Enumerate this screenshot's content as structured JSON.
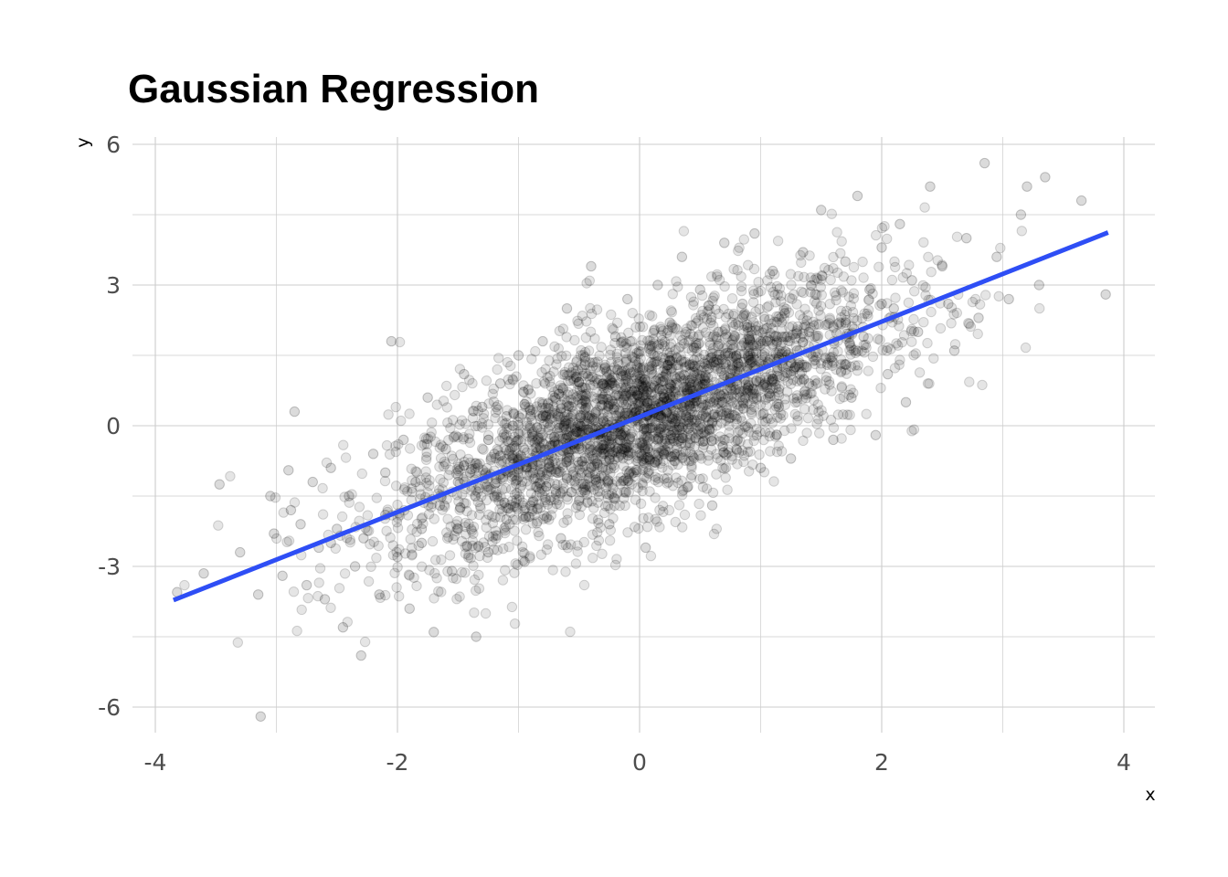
{
  "chart_data": {
    "type": "scatter",
    "title": "Gaussian Regression",
    "xlabel": "x",
    "ylabel": "y",
    "xlim": [
      -4.0,
      4.0
    ],
    "ylim": [
      -6.5,
      6.0
    ],
    "x_ticks": [
      -4,
      -2,
      0,
      2,
      4
    ],
    "x_tick_labels": [
      "-4",
      "-2",
      "0",
      "2",
      "4"
    ],
    "y_ticks": [
      -6,
      -3,
      0,
      3,
      6
    ],
    "y_tick_labels": [
      "-6",
      "-3",
      "0",
      "3",
      "6"
    ],
    "grid": true,
    "legend": "none",
    "colors": {
      "points": "#000000",
      "line": "#2e4ef5",
      "grid": "#cccccc"
    },
    "points_note_style": "semi-transparent black circles",
    "series": [
      {
        "kind": "points",
        "x": [
          -3.82,
          -3.6,
          -3.47,
          -3.3,
          -3.15,
          -3.13,
          -3.05,
          -3.02,
          -2.95,
          -2.9,
          -2.88,
          -2.85,
          -2.8,
          -2.75,
          -2.7,
          -2.65,
          -2.6,
          -2.55,
          -2.5,
          -2.45,
          -2.4,
          -2.35,
          -2.3,
          -2.28,
          -2.2,
          -2.15,
          -2.1,
          -2.05,
          -2.0,
          -1.95,
          -1.9,
          -1.85,
          -1.8,
          -1.75,
          -1.7,
          -1.65,
          -1.6,
          -1.55,
          -1.5,
          -1.45,
          -1.4,
          -1.35,
          -1.3,
          -1.25,
          -1.2,
          -1.15,
          -1.1,
          -1.05,
          -1.0,
          -0.95,
          -0.9,
          -0.85,
          -0.8,
          -0.75,
          -0.7,
          -0.65,
          -0.6,
          -0.55,
          -0.5,
          -0.45,
          -0.4,
          -0.35,
          -0.3,
          -0.25,
          -0.2,
          -0.15,
          -0.1,
          -0.05,
          0.0,
          0.05,
          0.1,
          0.15,
          0.2,
          0.25,
          0.3,
          0.35,
          0.4,
          0.45,
          0.5,
          0.55,
          0.6,
          0.65,
          0.7,
          0.75,
          0.8,
          0.85,
          0.9,
          0.95,
          1.0,
          1.05,
          1.1,
          1.15,
          1.2,
          1.25,
          1.3,
          1.35,
          1.4,
          1.45,
          1.5,
          1.55,
          1.6,
          1.65,
          1.7,
          1.75,
          1.8,
          1.85,
          1.9,
          1.95,
          2.0,
          2.05,
          2.1,
          2.15,
          2.2,
          2.25,
          2.3,
          2.4,
          2.5,
          2.6,
          2.7,
          2.8,
          2.85,
          2.95,
          3.05,
          3.15,
          3.2,
          3.3,
          3.35,
          3.65,
          3.85,
          -2.1,
          -1.8,
          -1.5,
          -1.2,
          -0.9,
          -0.6,
          -0.3,
          0.2,
          0.5,
          0.8,
          1.1,
          1.4,
          1.7,
          2.0,
          -1.0,
          -0.4,
          0.1,
          0.6,
          1.2,
          1.7,
          -2.55,
          -1.35,
          0.0,
          1.45,
          2.55,
          -1.1,
          1.0
        ],
        "y": [
          -3.55,
          -3.15,
          -1.25,
          -2.7,
          -3.6,
          -6.2,
          -1.5,
          -2.3,
          -3.2,
          -0.95,
          -1.8,
          0.3,
          -2.1,
          -3.4,
          -1.2,
          -2.6,
          -3.7,
          -0.9,
          -2.2,
          -4.3,
          -1.5,
          -3.0,
          -4.9,
          -2.4,
          -0.6,
          -3.6,
          -1.9,
          1.8,
          -2.8,
          -0.3,
          -3.9,
          -1.2,
          -2.5,
          0.6,
          -4.4,
          -1.7,
          -0.5,
          -3.1,
          -2.2,
          1.1,
          -1.0,
          -4.5,
          0.4,
          -2.7,
          -1.5,
          0.9,
          -2.0,
          -0.7,
          1.5,
          -2.9,
          0.2,
          -1.3,
          1.8,
          -0.9,
          0.6,
          -2.4,
          2.5,
          -0.4,
          -1.6,
          1.3,
          3.4,
          -0.8,
          0.9,
          -2.1,
          1.9,
          -0.2,
          2.7,
          -1.0,
          0.5,
          -2.6,
          1.7,
          3.0,
          -0.6,
          2.2,
          0.1,
          3.6,
          -1.3,
          1.4,
          2.9,
          0.3,
          -1.7,
          2.0,
          3.9,
          0.8,
          -0.5,
          2.6,
          1.2,
          4.1,
          -0.9,
          1.8,
          3.3,
          0.4,
          2.4,
          -0.7,
          1.6,
          3.7,
          0.9,
          2.8,
          4.6,
          1.3,
          -0.3,
          2.2,
          3.5,
          0.6,
          4.9,
          1.9,
          2.9,
          -0.2,
          3.8,
          1.1,
          2.5,
          4.3,
          0.5,
          3.1,
          2.0,
          5.1,
          3.4,
          1.6,
          4.0,
          2.3,
          5.6,
          3.6,
          2.7,
          4.5,
          5.1,
          3.0,
          5.3,
          4.8,
          2.8,
          -1.0,
          -2.2,
          -1.2,
          -0.6,
          -1.7,
          -0.2,
          0.1,
          0.6,
          1.0,
          1.5,
          1.0,
          2.0,
          2.2,
          2.6,
          -0.3,
          -0.9,
          0.3,
          0.8,
          1.9,
          1.3,
          -2.5,
          -0.8,
          0.3,
          1.4,
          2.6,
          0.2,
          1.8
        ]
      },
      {
        "kind": "regression-line",
        "x": [
          -3.85,
          3.87
        ],
        "y": [
          -3.72,
          4.12
        ]
      }
    ]
  }
}
